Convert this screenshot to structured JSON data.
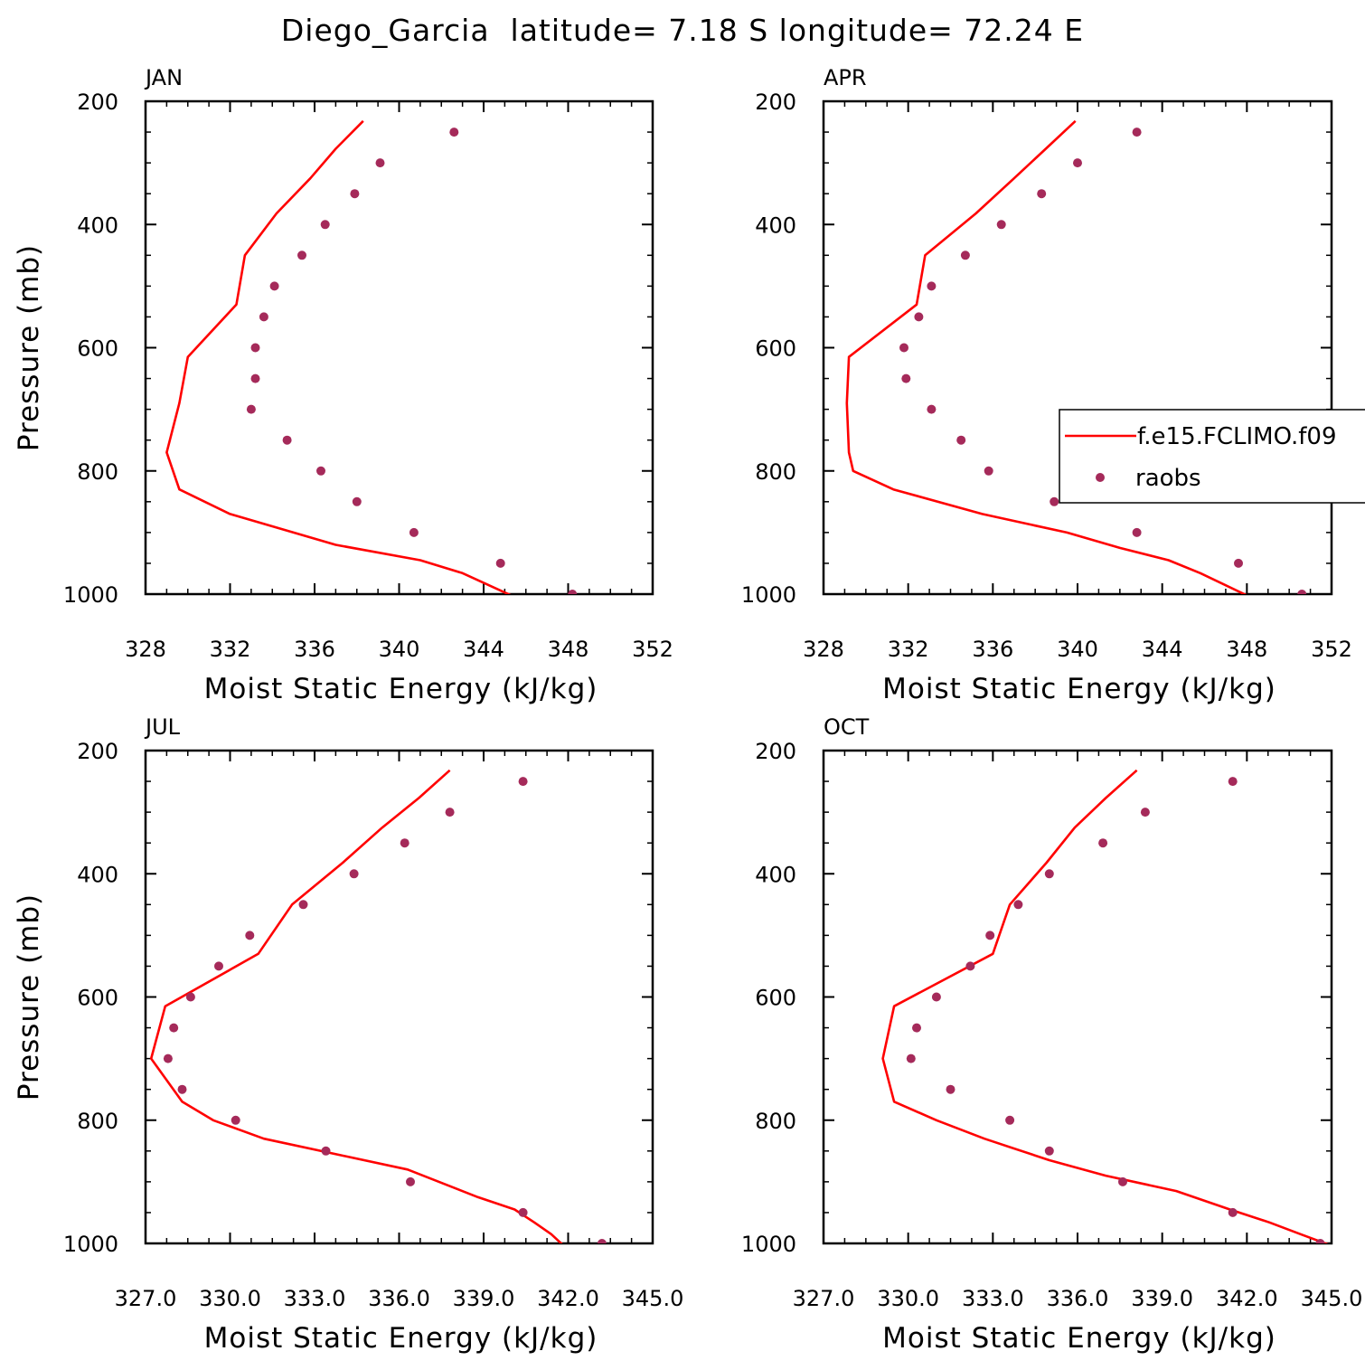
{
  "figure": {
    "title": "Diego_Garcia  latitude= 7.18 S longitude= 72.24 E"
  },
  "colors": {
    "model": "#ff0000",
    "obs": "#a52a5a",
    "axes": "#000000"
  },
  "legend": {
    "entries": [
      {
        "label": "f.e15.FCLIMO.f09",
        "marker": "line",
        "series": "model"
      },
      {
        "label": "raobs",
        "marker": "dot",
        "series": "obs"
      }
    ],
    "panel": "APR",
    "placement": "right, clipped at panel edge"
  },
  "chart_data": [
    {
      "type": "line",
      "panel": "JAN",
      "title": "JAN",
      "xlabel": "Moist Static Energy (kJ/kg)",
      "ylabel": "Pressure (mb)",
      "xlim": [
        328,
        352
      ],
      "ylim": [
        1000,
        200
      ],
      "y_inverted": true,
      "xticks": [
        328,
        332,
        336,
        340,
        344,
        348,
        352
      ],
      "xtick_labels": [
        "328",
        "332",
        "336",
        "340",
        "344",
        "348",
        "352"
      ],
      "yticks": [
        200,
        400,
        600,
        800,
        1000
      ],
      "ytick_labels": [
        "200",
        "400",
        "600",
        "800",
        "1000"
      ],
      "series": [
        {
          "name": "f.e15.FCLIMO.f09",
          "kind": "line",
          "x": [
            338.3,
            337.0,
            335.8,
            334.2,
            332.7,
            332.3,
            330.0,
            329.6,
            329.0,
            329.6,
            332.0,
            337.0,
            341.0,
            343.0,
            345.3
          ],
          "y": [
            232,
            277,
            325,
            382,
            450,
            530,
            615,
            690,
            770,
            830,
            870,
            920,
            945,
            966,
            1002
          ]
        },
        {
          "name": "raobs",
          "kind": "scatter",
          "x": [
            342.6,
            339.1,
            337.9,
            336.5,
            335.4,
            334.1,
            333.6,
            333.2,
            333.2,
            333.0,
            334.7,
            336.3,
            338.0,
            340.7,
            344.8,
            348.2
          ],
          "y": [
            250,
            300,
            350,
            400,
            450,
            500,
            550,
            600,
            650,
            700,
            750,
            800,
            850,
            900,
            950,
            1000
          ]
        }
      ]
    },
    {
      "type": "line",
      "panel": "APR",
      "title": "APR",
      "xlabel": "Moist Static Energy (kJ/kg)",
      "ylabel": "",
      "xlim": [
        328,
        352
      ],
      "ylim": [
        1000,
        200
      ],
      "y_inverted": true,
      "xticks": [
        328,
        332,
        336,
        340,
        344,
        348,
        352
      ],
      "xtick_labels": [
        "328",
        "332",
        "336",
        "340",
        "344",
        "348",
        "352"
      ],
      "yticks": [
        200,
        400,
        600,
        800,
        1000
      ],
      "ytick_labels": [
        "200",
        "400",
        "600",
        "800",
        "1000"
      ],
      "series": [
        {
          "name": "f.e15.FCLIMO.f09",
          "kind": "line",
          "x": [
            339.9,
            338.5,
            337.0,
            335.2,
            332.8,
            332.4,
            329.2,
            329.1,
            329.2,
            329.4,
            331.3,
            335.5,
            339.5,
            342.0,
            344.3,
            345.8,
            348.0
          ],
          "y": [
            232,
            277,
            325,
            382,
            450,
            530,
            615,
            690,
            770,
            800,
            830,
            870,
            900,
            925,
            945,
            966,
            1002
          ]
        },
        {
          "name": "raobs",
          "kind": "scatter",
          "x": [
            342.8,
            340.0,
            338.3,
            336.4,
            334.7,
            333.1,
            332.5,
            331.8,
            331.9,
            333.1,
            334.5,
            335.8,
            338.9,
            342.8,
            347.6,
            350.6
          ],
          "y": [
            250,
            300,
            350,
            400,
            450,
            500,
            550,
            600,
            650,
            700,
            750,
            800,
            850,
            900,
            950,
            1000
          ]
        }
      ]
    },
    {
      "type": "line",
      "panel": "JUL",
      "title": "JUL",
      "xlabel": "Moist Static Energy (kJ/kg)",
      "ylabel": "Pressure (mb)",
      "xlim": [
        327,
        345
      ],
      "ylim": [
        1000,
        200
      ],
      "y_inverted": true,
      "xticks": [
        327,
        330,
        333,
        336,
        339,
        342,
        345
      ],
      "xtick_labels": [
        "327.0",
        "330.0",
        "333.0",
        "336.0",
        "339.0",
        "342.0",
        "345.0"
      ],
      "yticks": [
        200,
        400,
        600,
        800,
        1000
      ],
      "ytick_labels": [
        "200",
        "400",
        "600",
        "800",
        "1000"
      ],
      "series": [
        {
          "name": "f.e15.FCLIMO.f09",
          "kind": "line",
          "x": [
            337.8,
            336.7,
            335.4,
            334.0,
            332.2,
            331.0,
            327.7,
            327.2,
            328.3,
            329.4,
            331.2,
            336.3,
            338.8,
            340.1,
            340.8,
            341.4,
            341.8
          ],
          "y": [
            232,
            277,
            325,
            382,
            450,
            530,
            615,
            700,
            770,
            800,
            830,
            880,
            925,
            945,
            966,
            985,
            1002
          ]
        },
        {
          "name": "raobs",
          "kind": "scatter",
          "x": [
            340.4,
            337.8,
            336.2,
            334.4,
            332.6,
            330.7,
            329.6,
            328.6,
            328.0,
            327.8,
            328.3,
            330.2,
            333.4,
            336.4,
            340.4,
            343.2
          ],
          "y": [
            250,
            300,
            350,
            400,
            450,
            500,
            550,
            600,
            650,
            700,
            750,
            800,
            850,
            900,
            950,
            1000
          ]
        }
      ]
    },
    {
      "type": "line",
      "panel": "OCT",
      "title": "OCT",
      "xlabel": "Moist Static Energy (kJ/kg)",
      "ylabel": "",
      "xlim": [
        327,
        345
      ],
      "ylim": [
        1000,
        200
      ],
      "y_inverted": true,
      "xticks": [
        327,
        330,
        333,
        336,
        339,
        342,
        345
      ],
      "xtick_labels": [
        "327.0",
        "330.0",
        "333.0",
        "336.0",
        "339.0",
        "342.0",
        "345.0"
      ],
      "yticks": [
        200,
        400,
        600,
        800,
        1000
      ],
      "ytick_labels": [
        "200",
        "400",
        "600",
        "800",
        "1000"
      ],
      "series": [
        {
          "name": "f.e15.FCLIMO.f09",
          "kind": "line",
          "x": [
            338.1,
            337.0,
            335.9,
            334.9,
            333.6,
            333.0,
            329.5,
            329.1,
            329.5,
            331.0,
            332.7,
            335.0,
            337.0,
            339.5,
            341.4,
            342.8,
            343.9,
            344.9
          ],
          "y": [
            232,
            277,
            325,
            382,
            450,
            530,
            615,
            700,
            770,
            800,
            830,
            865,
            890,
            915,
            945,
            966,
            985,
            1002
          ]
        },
        {
          "name": "raobs",
          "kind": "scatter",
          "x": [
            341.5,
            338.4,
            336.9,
            335.0,
            333.9,
            332.9,
            332.2,
            331.0,
            330.3,
            330.1,
            331.5,
            333.6,
            335.0,
            337.6,
            341.5,
            344.6
          ],
          "y": [
            250,
            300,
            350,
            400,
            450,
            500,
            550,
            600,
            650,
            700,
            750,
            800,
            850,
            900,
            950,
            1000
          ]
        }
      ]
    }
  ]
}
